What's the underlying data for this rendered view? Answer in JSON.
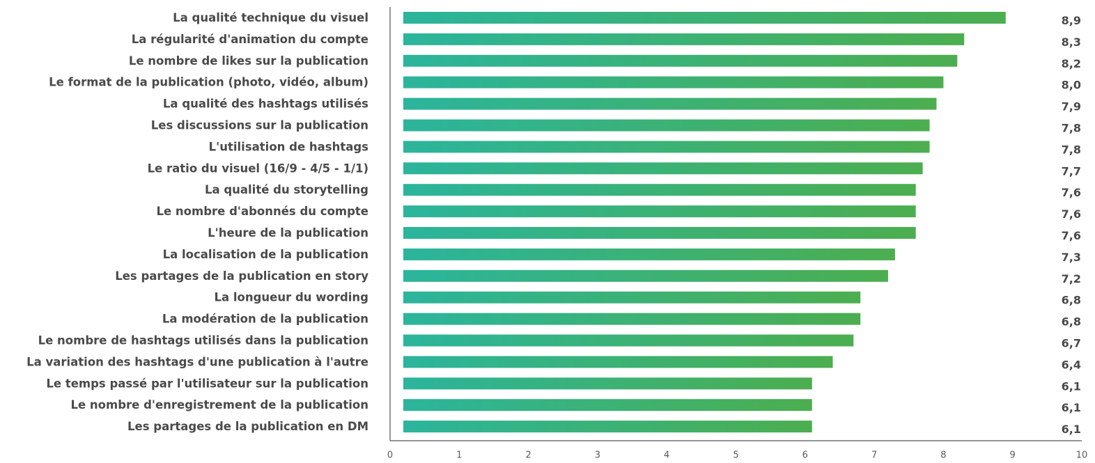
{
  "chart_data": {
    "type": "bar",
    "orientation": "horizontal",
    "title": "",
    "xlabel": "",
    "ylabel": "",
    "xlim": [
      0,
      10
    ],
    "x_ticks": [
      "0",
      "1",
      "2",
      "3",
      "4",
      "5",
      "6",
      "7",
      "8",
      "9",
      "10"
    ],
    "grid": false,
    "legend": "none",
    "bar_gradient": [
      "#2bb59c",
      "#4cae4f"
    ],
    "categories": [
      "La qualité technique du visuel",
      "La régularité d'animation du compte",
      "Le nombre de likes sur la publication",
      "Le format de la publication (photo, vidéo, album)",
      "La qualité des hashtags utilisés",
      "Les discussions sur la publication",
      "L'utilisation de hashtags",
      "Le ratio du visuel (16/9 - 4/5 - 1/1)",
      "La qualité du storytelling",
      "Le nombre d'abonnés du compte",
      "L'heure de la publication",
      "La localisation de la publication",
      "Les partages de la publication en story",
      "La longueur du wording",
      "La modération de la publication",
      "Le nombre de hashtags utilisés dans la publication",
      "La variation des hashtags d'une publication à l'autre",
      "Le temps passé par l'utilisateur sur la publication",
      "Le nombre d'enregistrement de la publication",
      "Les partages de la publication en DM"
    ],
    "values": [
      8.9,
      8.3,
      8.2,
      8.0,
      7.9,
      7.8,
      7.8,
      7.7,
      7.6,
      7.6,
      7.6,
      7.3,
      7.2,
      6.8,
      6.8,
      6.7,
      6.4,
      6.1,
      6.1,
      6.1
    ],
    "value_labels": [
      "8,9",
      "8,3",
      "8,2",
      "8,0",
      "7,9",
      "7,8",
      "7,8",
      "7,7",
      "7,6",
      "7,6",
      "7,6",
      "7,3",
      "7,2",
      "6,8",
      "6,8",
      "6,7",
      "6,4",
      "6,1",
      "6,1",
      "6,1"
    ]
  }
}
